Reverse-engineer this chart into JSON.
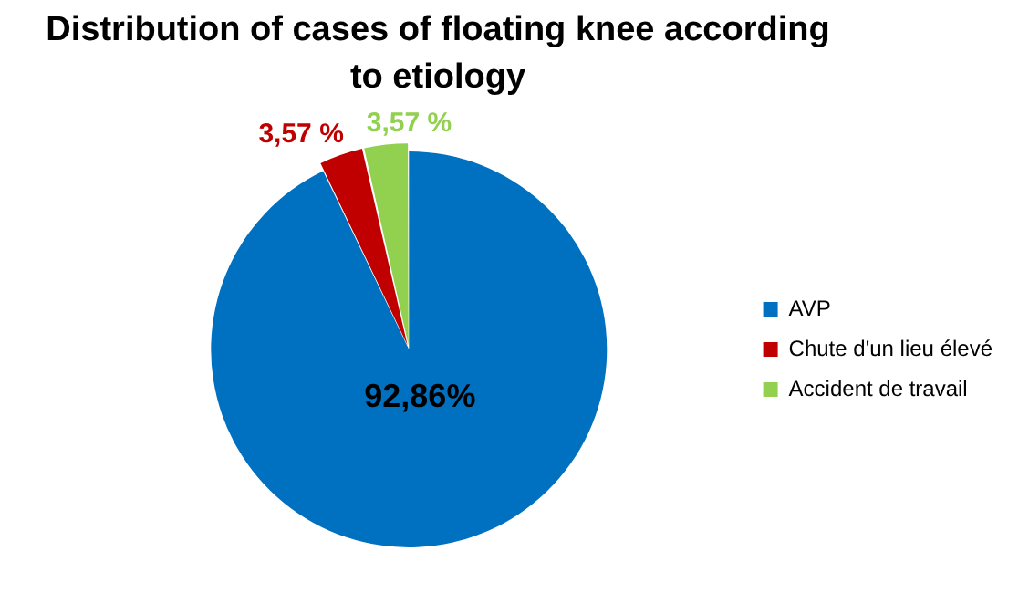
{
  "chart_data": {
    "type": "pie",
    "title": "Distribution of cases of floating knee according to etiology",
    "categories": [
      "AVP",
      "Chute d'un lieu élevé",
      "Accident de travail"
    ],
    "values": [
      92.86,
      3.57,
      3.57
    ],
    "colors": [
      "#0070c0",
      "#c00000",
      "#92d050"
    ],
    "value_labels": [
      "92,86%",
      "3,57 %",
      "3,57 %"
    ],
    "legend": "right"
  }
}
